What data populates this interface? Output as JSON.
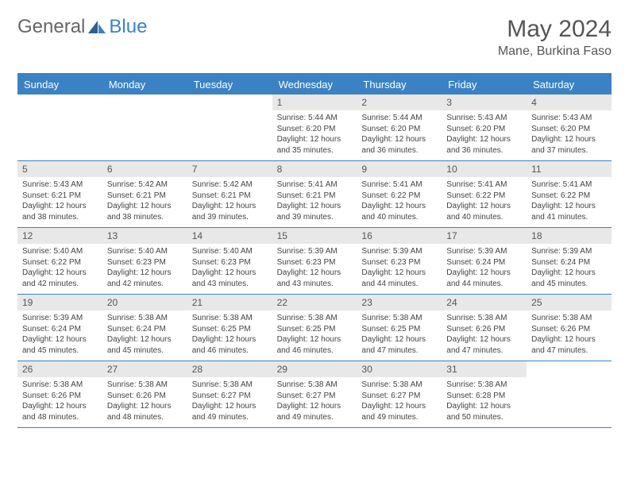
{
  "logo": {
    "text1": "General",
    "text2": "Blue"
  },
  "title": "May 2024",
  "location": "Mane, Burkina Faso",
  "colors": {
    "accent": "#3b82c4",
    "header_text": "#ffffff",
    "daynum_bg": "#e8e8e8",
    "body_text": "#444444",
    "title_text": "#555555"
  },
  "day_names": [
    "Sunday",
    "Monday",
    "Tuesday",
    "Wednesday",
    "Thursday",
    "Friday",
    "Saturday"
  ],
  "weeks": [
    [
      null,
      null,
      null,
      {
        "n": "1",
        "sunrise": "5:44 AM",
        "sunset": "6:20 PM",
        "daylight": "12 hours and 35 minutes."
      },
      {
        "n": "2",
        "sunrise": "5:44 AM",
        "sunset": "6:20 PM",
        "daylight": "12 hours and 36 minutes."
      },
      {
        "n": "3",
        "sunrise": "5:43 AM",
        "sunset": "6:20 PM",
        "daylight": "12 hours and 36 minutes."
      },
      {
        "n": "4",
        "sunrise": "5:43 AM",
        "sunset": "6:20 PM",
        "daylight": "12 hours and 37 minutes."
      }
    ],
    [
      {
        "n": "5",
        "sunrise": "5:43 AM",
        "sunset": "6:21 PM",
        "daylight": "12 hours and 38 minutes."
      },
      {
        "n": "6",
        "sunrise": "5:42 AM",
        "sunset": "6:21 PM",
        "daylight": "12 hours and 38 minutes."
      },
      {
        "n": "7",
        "sunrise": "5:42 AM",
        "sunset": "6:21 PM",
        "daylight": "12 hours and 39 minutes."
      },
      {
        "n": "8",
        "sunrise": "5:41 AM",
        "sunset": "6:21 PM",
        "daylight": "12 hours and 39 minutes."
      },
      {
        "n": "9",
        "sunrise": "5:41 AM",
        "sunset": "6:22 PM",
        "daylight": "12 hours and 40 minutes."
      },
      {
        "n": "10",
        "sunrise": "5:41 AM",
        "sunset": "6:22 PM",
        "daylight": "12 hours and 40 minutes."
      },
      {
        "n": "11",
        "sunrise": "5:41 AM",
        "sunset": "6:22 PM",
        "daylight": "12 hours and 41 minutes."
      }
    ],
    [
      {
        "n": "12",
        "sunrise": "5:40 AM",
        "sunset": "6:22 PM",
        "daylight": "12 hours and 42 minutes."
      },
      {
        "n": "13",
        "sunrise": "5:40 AM",
        "sunset": "6:23 PM",
        "daylight": "12 hours and 42 minutes."
      },
      {
        "n": "14",
        "sunrise": "5:40 AM",
        "sunset": "6:23 PM",
        "daylight": "12 hours and 43 minutes."
      },
      {
        "n": "15",
        "sunrise": "5:39 AM",
        "sunset": "6:23 PM",
        "daylight": "12 hours and 43 minutes."
      },
      {
        "n": "16",
        "sunrise": "5:39 AM",
        "sunset": "6:23 PM",
        "daylight": "12 hours and 44 minutes."
      },
      {
        "n": "17",
        "sunrise": "5:39 AM",
        "sunset": "6:24 PM",
        "daylight": "12 hours and 44 minutes."
      },
      {
        "n": "18",
        "sunrise": "5:39 AM",
        "sunset": "6:24 PM",
        "daylight": "12 hours and 45 minutes."
      }
    ],
    [
      {
        "n": "19",
        "sunrise": "5:39 AM",
        "sunset": "6:24 PM",
        "daylight": "12 hours and 45 minutes."
      },
      {
        "n": "20",
        "sunrise": "5:38 AM",
        "sunset": "6:24 PM",
        "daylight": "12 hours and 45 minutes."
      },
      {
        "n": "21",
        "sunrise": "5:38 AM",
        "sunset": "6:25 PM",
        "daylight": "12 hours and 46 minutes."
      },
      {
        "n": "22",
        "sunrise": "5:38 AM",
        "sunset": "6:25 PM",
        "daylight": "12 hours and 46 minutes."
      },
      {
        "n": "23",
        "sunrise": "5:38 AM",
        "sunset": "6:25 PM",
        "daylight": "12 hours and 47 minutes."
      },
      {
        "n": "24",
        "sunrise": "5:38 AM",
        "sunset": "6:26 PM",
        "daylight": "12 hours and 47 minutes."
      },
      {
        "n": "25",
        "sunrise": "5:38 AM",
        "sunset": "6:26 PM",
        "daylight": "12 hours and 47 minutes."
      }
    ],
    [
      {
        "n": "26",
        "sunrise": "5:38 AM",
        "sunset": "6:26 PM",
        "daylight": "12 hours and 48 minutes."
      },
      {
        "n": "27",
        "sunrise": "5:38 AM",
        "sunset": "6:26 PM",
        "daylight": "12 hours and 48 minutes."
      },
      {
        "n": "28",
        "sunrise": "5:38 AM",
        "sunset": "6:27 PM",
        "daylight": "12 hours and 49 minutes."
      },
      {
        "n": "29",
        "sunrise": "5:38 AM",
        "sunset": "6:27 PM",
        "daylight": "12 hours and 49 minutes."
      },
      {
        "n": "30",
        "sunrise": "5:38 AM",
        "sunset": "6:27 PM",
        "daylight": "12 hours and 49 minutes."
      },
      {
        "n": "31",
        "sunrise": "5:38 AM",
        "sunset": "6:28 PM",
        "daylight": "12 hours and 50 minutes."
      },
      null
    ]
  ],
  "labels": {
    "sunrise": "Sunrise:",
    "sunset": "Sunset:",
    "daylight": "Daylight:"
  }
}
